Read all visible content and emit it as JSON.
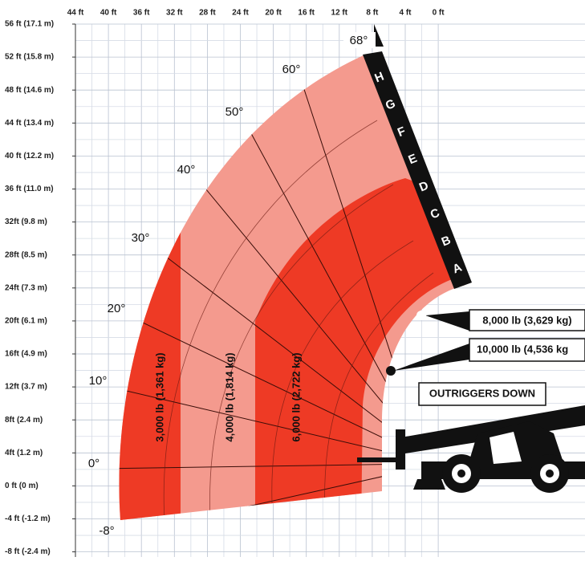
{
  "x_axis": {
    "labels": [
      "44 ft",
      "40 ft",
      "36 ft",
      "32 ft",
      "28 ft",
      "24 ft",
      "20 ft",
      "16 ft",
      "12 ft",
      "8 ft",
      "4 ft",
      "0 ft"
    ]
  },
  "y_axis": {
    "labels": [
      "56 ft (17.1 m)",
      "52 ft (15.8 m)",
      "48 ft (14.6 m)",
      "44 ft (13.4 m)",
      "40 ft (12.2 m)",
      "36 ft (11.0 m)",
      "32ft (9.8 m)",
      "28ft (8.5 m)",
      "24ft (7.3 m)",
      "20ft (6.1 m)",
      "16ft (4.9 m)",
      "12ft (3.7 m)",
      "8ft (2.4 m)",
      "4ft (1.2 m)",
      "0 ft (0 m)",
      "-4 ft (-1.2 m)",
      "-8 ft (-2.4 m)"
    ]
  },
  "boom": {
    "max_angle": "68°",
    "sections": [
      "H",
      "G",
      "F",
      "E",
      "D",
      "C",
      "B",
      "A"
    ]
  },
  "angles": [
    "60°",
    "50°",
    "40°",
    "30°",
    "20°",
    "10°",
    "0°",
    "-8°"
  ],
  "load_zones": [
    "3,000 lb (1,361 kg)",
    "4,000 lb (1,814 kg)",
    "6,000 lb (2,722 kg)"
  ],
  "callouts": [
    "8,000 lb (3,629 kg)",
    "10,000 lb (4,536 kg"
  ],
  "outriggers": "OUTRIGGERS DOWN"
}
